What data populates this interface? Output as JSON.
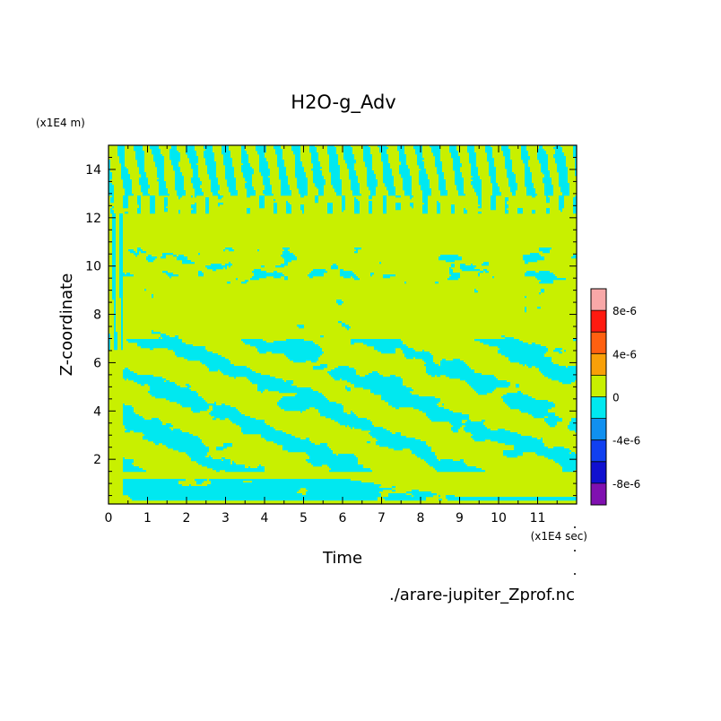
{
  "chart_data": {
    "type": "heatmap",
    "title": "H2O-g_Adv",
    "xlabel": "Time",
    "ylabel": "Z-coordinate",
    "x_unit": "(x1E4 sec)",
    "y_unit": "(x1E4 m)",
    "source_file": "./arare-jupiter_Zprof.nc",
    "xlim": [
      0,
      12
    ],
    "ylim": [
      0.15,
      15
    ],
    "x_ticks": [
      "0",
      "1",
      "2",
      "3",
      "4",
      "5",
      "6",
      "7",
      "8",
      "9",
      "10",
      "11"
    ],
    "y_ticks": [
      "2",
      "4",
      "6",
      "8",
      "10",
      "12",
      "14"
    ],
    "y_tick_values": [
      2,
      4,
      6,
      8,
      10,
      12,
      14
    ],
    "grid": false,
    "dominant_level": "0",
    "colorbar": {
      "range": [
        -1e-05,
        1e-05
      ],
      "labels": [
        "8e-6",
        "4e-6",
        "0",
        "-4e-6",
        "-8e-6"
      ],
      "label_values": [
        8e-06,
        4e-06,
        0,
        -4e-06,
        -8e-06
      ],
      "levels": [
        {
          "from": 8e-06,
          "to": 1e-05,
          "color": "#f8a8a8"
        },
        {
          "from": 6e-06,
          "to": 8e-06,
          "color": "#ff1a10"
        },
        {
          "from": 4e-06,
          "to": 6e-06,
          "color": "#ff6010"
        },
        {
          "from": 2e-06,
          "to": 4e-06,
          "color": "#f8a008"
        },
        {
          "from": 0,
          "to": 2e-06,
          "color": "#c8f000"
        },
        {
          "from": -2e-06,
          "to": 0,
          "color": "#00e8f0"
        },
        {
          "from": -4e-06,
          "to": -2e-06,
          "color": "#1090f0"
        },
        {
          "from": -6e-06,
          "to": -4e-06,
          "color": "#1040f0"
        },
        {
          "from": -8e-06,
          "to": -6e-06,
          "color": "#1010d0"
        },
        {
          "from": -1e-05,
          "to": -8e-06,
          "color": "#8010b0"
        }
      ]
    }
  }
}
